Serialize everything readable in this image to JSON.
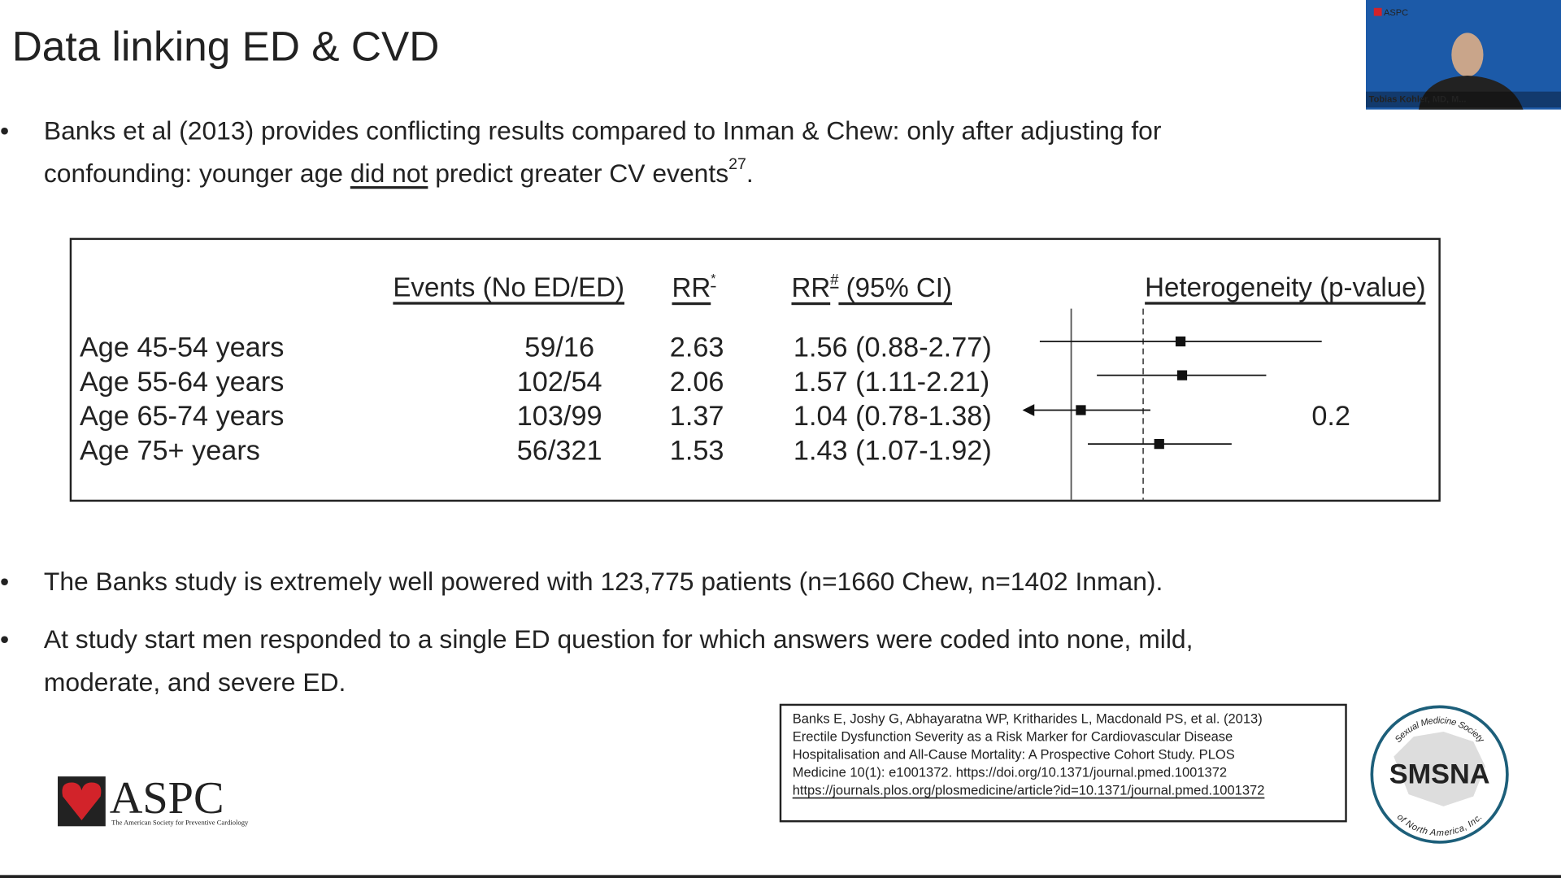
{
  "title": "Data linking ED & CVD",
  "bullets": [
    {
      "line1": "Banks et al (2013) provides conflicting results compared to Inman & Chew: only after adjusting for",
      "line2": "confounding: younger age ",
      "underlined": "did not",
      "after": " predict greater CV events",
      "superscript": "27",
      "end": "."
    },
    {
      "lines": [
        "The Banks study is extremely well powered with 123,775 patients (n=1660 Chew, n=1402 Inman)."
      ]
    },
    {
      "lines": [
        "At study start men responded to a single ED question for which answers were coded into none, mild,",
        "moderate, and severe ED."
      ]
    }
  ],
  "table": {
    "headers": {
      "events": "Events (No ED/ED)",
      "rr": "RR",
      "rr_mark": "*",
      "rr_ci": "RR",
      "rr_ci_mark": "#",
      "rr_ci_rest": " (95% CI)",
      "heterogeneity": "Heterogeneity (p-value)"
    },
    "rows": [
      {
        "label": "Age 45-54 years",
        "events": "59/16",
        "rr": "2.63",
        "rr_ci": "1.56 (0.88-2.77)"
      },
      {
        "label": "Age 55-64 years",
        "events": "102/54",
        "rr": "2.06",
        "rr_ci": "1.57 (1.11-2.21)"
      },
      {
        "label": "Age 65-74 years",
        "events": "103/99",
        "rr": "1.37",
        "rr_ci": "1.04 (0.78-1.38)"
      },
      {
        "label": "Age 75+ years",
        "events": "56/321",
        "rr": "1.53",
        "rr_ci": "1.43 (1.07-1.92)"
      }
    ],
    "heterogeneity": "0.2",
    "forest": {
      "log": true,
      "xlim": [
        0.82,
        2.9
      ],
      "null_line": 1,
      "pooled_line": 1.34,
      "points": [
        {
          "estimate": 1.56,
          "lower": 0.88,
          "upper": 2.77
        },
        {
          "estimate": 1.57,
          "lower": 1.11,
          "upper": 2.21
        },
        {
          "estimate": 1.04,
          "lower": 0.78,
          "upper": 1.38
        },
        {
          "estimate": 1.43,
          "lower": 1.07,
          "upper": 1.92
        }
      ]
    }
  },
  "citation": {
    "lines": [
      "Banks E, Joshy G, Abhayaratna WP, Kritharides L, Macdonald PS, et al. (2013)",
      "Erectile Dysfunction Severity as a Risk Marker for Cardiovascular Disease",
      "Hospitalisation and All-Cause Mortality: A Prospective Cohort Study. PLOS",
      "Medicine 10(1): e1001372. https://doi.org/10.1371/journal.pmed.1001372"
    ],
    "link": "https://journals.plos.org/plosmedicine/article?id=10.1371/journal.pmed.1001372"
  },
  "logos": {
    "aspc": "ASPC",
    "aspc_subtitle": "The American Society for Preventive Cardiology",
    "smsna": "SMSNA",
    "smsna_top": "Sexual Medicine Society",
    "smsna_bottom": "of North America, Inc."
  },
  "video": {
    "name": "Tobias Kohler, MD, M...",
    "badge": "ASPC"
  }
}
